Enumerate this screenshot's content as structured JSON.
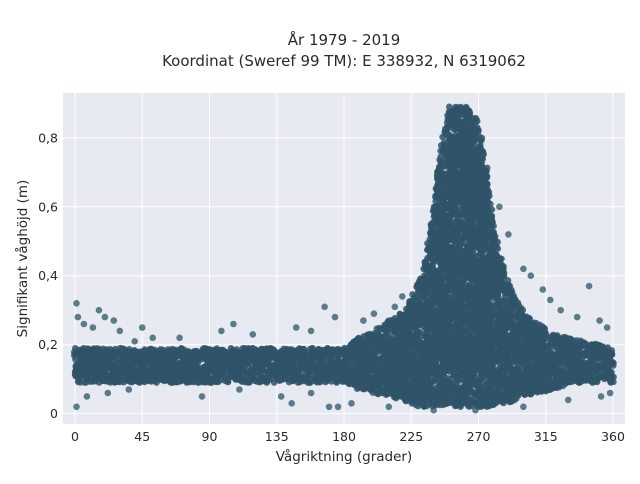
{
  "chart_data": {
    "type": "scatter",
    "title_lines": [
      "År 1979 - 2019",
      "Koordinat (Sweref 99 TM): E 338932, N 6319062"
    ],
    "xlabel": "Vågriktning (grader)",
    "ylabel": "Signifikant våghöjd (m)",
    "xlim": [
      -8,
      368
    ],
    "ylim": [
      -0.03,
      0.93
    ],
    "x_ticks": [
      0,
      45,
      90,
      135,
      180,
      225,
      270,
      315,
      360
    ],
    "x_tick_labels": [
      "0",
      "45",
      "90",
      "135",
      "180",
      "225",
      "270",
      "315",
      "360"
    ],
    "y_ticks": [
      0,
      0.2,
      0.4,
      0.6,
      0.8
    ],
    "y_tick_labels": [
      "0",
      "0,2",
      "0,4",
      "0,6",
      "0,8"
    ],
    "grid": true,
    "legend": "none",
    "marker_color": "#2f5468",
    "plot_background": "#e8eaf1",
    "envelope": {
      "direction_deg": [
        0,
        10,
        20,
        30,
        45,
        60,
        75,
        90,
        105,
        120,
        135,
        150,
        165,
        180,
        190,
        200,
        210,
        220,
        225,
        230,
        235,
        240,
        245,
        250,
        255,
        260,
        265,
        270,
        275,
        280,
        285,
        290,
        295,
        300,
        310,
        320,
        330,
        340,
        350,
        360
      ],
      "lower_m": [
        0.09,
        0.09,
        0.09,
        0.09,
        0.09,
        0.09,
        0.09,
        0.09,
        0.09,
        0.09,
        0.09,
        0.09,
        0.09,
        0.09,
        0.07,
        0.06,
        0.05,
        0.04,
        0.03,
        0.02,
        0.02,
        0.02,
        0.02,
        0.02,
        0.02,
        0.02,
        0.02,
        0.02,
        0.02,
        0.02,
        0.03,
        0.03,
        0.04,
        0.05,
        0.06,
        0.07,
        0.08,
        0.09,
        0.09,
        0.09
      ],
      "upper_m": [
        0.19,
        0.19,
        0.19,
        0.19,
        0.19,
        0.19,
        0.19,
        0.19,
        0.19,
        0.19,
        0.19,
        0.19,
        0.19,
        0.19,
        0.22,
        0.24,
        0.27,
        0.3,
        0.33,
        0.38,
        0.45,
        0.6,
        0.78,
        0.89,
        0.89,
        0.89,
        0.89,
        0.85,
        0.72,
        0.56,
        0.45,
        0.38,
        0.33,
        0.3,
        0.26,
        0.23,
        0.22,
        0.21,
        0.2,
        0.19
      ]
    },
    "outliers": [
      {
        "x": 1,
        "y": 0.32
      },
      {
        "x": 2,
        "y": 0.28
      },
      {
        "x": 6,
        "y": 0.26
      },
      {
        "x": 12,
        "y": 0.25
      },
      {
        "x": 16,
        "y": 0.3
      },
      {
        "x": 20,
        "y": 0.28
      },
      {
        "x": 26,
        "y": 0.27
      },
      {
        "x": 30,
        "y": 0.24
      },
      {
        "x": 40,
        "y": 0.21
      },
      {
        "x": 45,
        "y": 0.25
      },
      {
        "x": 52,
        "y": 0.22
      },
      {
        "x": 70,
        "y": 0.22
      },
      {
        "x": 98,
        "y": 0.24
      },
      {
        "x": 106,
        "y": 0.26
      },
      {
        "x": 119,
        "y": 0.23
      },
      {
        "x": 148,
        "y": 0.25
      },
      {
        "x": 158,
        "y": 0.24
      },
      {
        "x": 167,
        "y": 0.31
      },
      {
        "x": 174,
        "y": 0.28
      },
      {
        "x": 193,
        "y": 0.27
      },
      {
        "x": 200,
        "y": 0.29
      },
      {
        "x": 214,
        "y": 0.31
      },
      {
        "x": 219,
        "y": 0.34
      },
      {
        "x": 300,
        "y": 0.42
      },
      {
        "x": 305,
        "y": 0.4
      },
      {
        "x": 313,
        "y": 0.36
      },
      {
        "x": 318,
        "y": 0.33
      },
      {
        "x": 325,
        "y": 0.3
      },
      {
        "x": 336,
        "y": 0.28
      },
      {
        "x": 344,
        "y": 0.37
      },
      {
        "x": 351,
        "y": 0.27
      },
      {
        "x": 356,
        "y": 0.25
      },
      {
        "x": 290,
        "y": 0.52
      },
      {
        "x": 284,
        "y": 0.6
      },
      {
        "x": 1,
        "y": 0.02
      },
      {
        "x": 8,
        "y": 0.05
      },
      {
        "x": 22,
        "y": 0.06
      },
      {
        "x": 36,
        "y": 0.07
      },
      {
        "x": 85,
        "y": 0.05
      },
      {
        "x": 110,
        "y": 0.07
      },
      {
        "x": 138,
        "y": 0.05
      },
      {
        "x": 145,
        "y": 0.03
      },
      {
        "x": 158,
        "y": 0.06
      },
      {
        "x": 170,
        "y": 0.02
      },
      {
        "x": 176,
        "y": 0.02
      },
      {
        "x": 185,
        "y": 0.03
      },
      {
        "x": 210,
        "y": 0.02
      },
      {
        "x": 240,
        "y": 0.01
      },
      {
        "x": 268,
        "y": 0.01
      },
      {
        "x": 300,
        "y": 0.02
      },
      {
        "x": 330,
        "y": 0.04
      },
      {
        "x": 352,
        "y": 0.05
      },
      {
        "x": 358,
        "y": 0.06
      }
    ]
  }
}
